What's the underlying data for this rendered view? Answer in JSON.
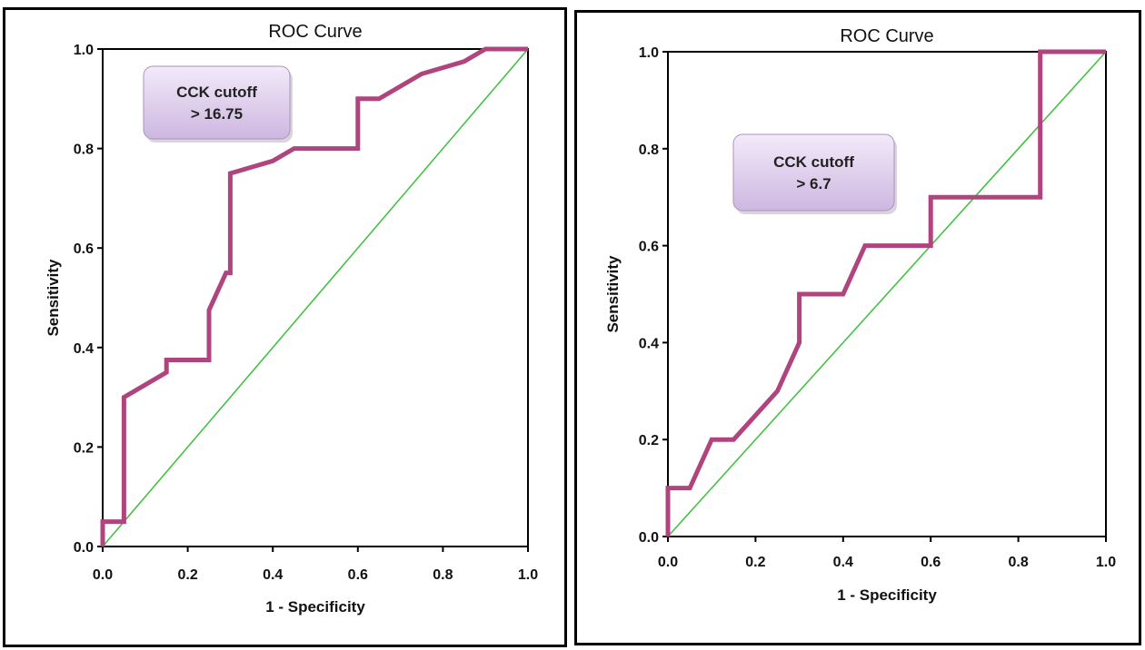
{
  "chart_data": [
    {
      "type": "line",
      "title": "ROC Curve",
      "xlabel": "1 - Specificity",
      "ylabel": "Sensitivity",
      "xlim": [
        0,
        1
      ],
      "ylim": [
        0,
        1
      ],
      "xticks": [
        "0.0",
        "0.2",
        "0.4",
        "0.6",
        "0.8",
        "1.0"
      ],
      "yticks": [
        "0.0",
        "0.2",
        "0.4",
        "0.6",
        "0.8",
        "1.0"
      ],
      "grid": false,
      "annotation": [
        "CCK cutoff",
        "> 16.75"
      ],
      "series": [
        {
          "color": "#b0447e",
          "x": [
            0,
            0,
            0.05,
            0.05,
            0.15,
            0.15,
            0.25,
            0.25,
            0.29,
            0.3,
            0.3,
            0.4,
            0.45,
            0.6,
            0.6,
            0.65,
            0.75,
            0.85,
            0.9,
            1.0
          ],
          "y": [
            0,
            0.05,
            0.05,
            0.3,
            0.35,
            0.375,
            0.375,
            0.475,
            0.55,
            0.55,
            0.75,
            0.775,
            0.8,
            0.8,
            0.9,
            0.9,
            0.95,
            0.975,
            1.0,
            1.0
          ]
        },
        {
          "color": "#44c244",
          "x": [
            0,
            1
          ],
          "y": [
            0,
            1
          ]
        }
      ]
    },
    {
      "type": "line",
      "title": "ROC Curve",
      "xlabel": "1 - Specificity",
      "ylabel": "Sensitivity",
      "xlim": [
        0,
        1
      ],
      "ylim": [
        0,
        1
      ],
      "xticks": [
        "0.0",
        "0.2",
        "0.4",
        "0.6",
        "0.8",
        "1.0"
      ],
      "yticks": [
        "0.0",
        "0.2",
        "0.4",
        "0.6",
        "0.8",
        "1.0"
      ],
      "grid": false,
      "annotation": [
        "CCK cutoff",
        "> 6.7"
      ],
      "series": [
        {
          "color": "#b0447e",
          "x": [
            0,
            0,
            0.05,
            0.1,
            0.15,
            0.25,
            0.3,
            0.3,
            0.4,
            0.45,
            0.6,
            0.6,
            0.85,
            0.85,
            1.0
          ],
          "y": [
            0,
            0.1,
            0.1,
            0.2,
            0.2,
            0.3,
            0.4,
            0.5,
            0.5,
            0.6,
            0.6,
            0.7,
            0.7,
            1.0,
            1.0
          ]
        },
        {
          "color": "#44c244",
          "x": [
            0,
            1
          ],
          "y": [
            0,
            1
          ]
        }
      ]
    }
  ]
}
